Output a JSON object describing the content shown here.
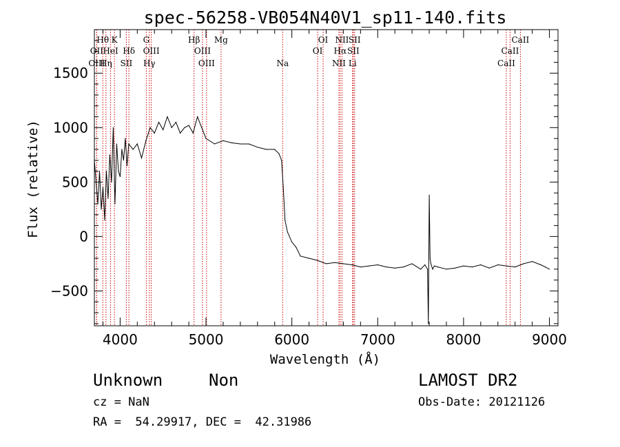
{
  "chart_data": {
    "type": "line",
    "title": "spec-56258-VB054N40V1_sp11-140.fits",
    "xlabel": "Wavelength (Å)",
    "ylabel": "Flux (relative)",
    "xlim": [
      3700,
      9100
    ],
    "ylim": [
      -820,
      1900
    ],
    "xticks": [
      4000,
      5000,
      6000,
      7000,
      8000,
      9000
    ],
    "xtick_labels": [
      "4000",
      "5000",
      "6000",
      "7000",
      "8000",
      "9000"
    ],
    "yticks": [
      -500,
      0,
      500,
      1000,
      1500
    ],
    "ytick_labels": [
      "−500",
      "0",
      "500",
      "1000",
      "1500"
    ],
    "series": [
      {
        "x": [
          3700,
          3720,
          3740,
          3760,
          3780,
          3800,
          3820,
          3840,
          3860,
          3880,
          3900,
          3920,
          3940,
          3960,
          3980,
          4000,
          4020,
          4040,
          4060,
          4080,
          4100,
          4150,
          4200,
          4250,
          4300,
          4350,
          4400,
          4450,
          4500,
          4550,
          4600,
          4650,
          4700,
          4750,
          4800,
          4850,
          4900,
          4950,
          5000,
          5100,
          5200,
          5300,
          5400,
          5500,
          5600,
          5700,
          5800,
          5850,
          5880,
          5900,
          5920,
          5950,
          6000,
          6050,
          6100,
          6200,
          6300,
          6400,
          6500,
          6600,
          6700,
          6800,
          6900,
          7000,
          7100,
          7200,
          7300,
          7400,
          7500,
          7550,
          7580,
          7590,
          7600,
          7610,
          7620,
          7640,
          7660,
          7700,
          7800,
          7900,
          8000,
          8100,
          8200,
          8300,
          8400,
          8500,
          8600,
          8700,
          8800,
          8900,
          8950,
          9000
        ],
        "y": [
          700,
          500,
          300,
          600,
          250,
          450,
          150,
          600,
          350,
          750,
          500,
          1000,
          300,
          850,
          600,
          550,
          800,
          700,
          900,
          650,
          850,
          800,
          850,
          720,
          880,
          1000,
          950,
          1050,
          980,
          1100,
          1000,
          1050,
          950,
          1000,
          1020,
          950,
          1100,
          1000,
          900,
          850,
          880,
          860,
          850,
          850,
          820,
          800,
          800,
          760,
          700,
          450,
          150,
          40,
          -50,
          -100,
          -180,
          -200,
          -220,
          -250,
          -240,
          -250,
          -260,
          -280,
          -270,
          -260,
          -280,
          -290,
          -280,
          -250,
          -300,
          -260,
          -300,
          -800,
          380,
          -200,
          -250,
          -300,
          -270,
          -280,
          -300,
          -290,
          -270,
          -280,
          -260,
          -290,
          -260,
          -270,
          -280,
          -250,
          -230,
          -260,
          -280,
          -300
        ]
      }
    ],
    "spectral_lines": [
      {
        "label": "Hθ",
        "x": 3798,
        "row": 1
      },
      {
        "label": "K",
        "x": 3934,
        "row": 1
      },
      {
        "label": "G",
        "x": 4305,
        "row": 1
      },
      {
        "label": "Hβ",
        "x": 4861,
        "row": 1
      },
      {
        "label": "Mg",
        "x": 5175,
        "row": 1
      },
      {
        "label": "OI",
        "x": 6364,
        "row": 1
      },
      {
        "label": "NII",
        "x": 6584,
        "row": 1
      },
      {
        "label": "SII",
        "x": 6731,
        "row": 1
      },
      {
        "label": "CaII",
        "x": 8662,
        "row": 1
      },
      {
        "label": "OII",
        "x": 3727,
        "row": 2
      },
      {
        "label": "HeI",
        "x": 3889,
        "row": 2
      },
      {
        "label": "Hδ",
        "x": 4102,
        "row": 2
      },
      {
        "label": "OIII",
        "x": 4363,
        "row": 2
      },
      {
        "label": "OIII",
        "x": 4959,
        "row": 2
      },
      {
        "label": "OI",
        "x": 6300,
        "row": 2
      },
      {
        "label": "Hα",
        "x": 6563,
        "row": 2
      },
      {
        "label": "SII",
        "x": 6716,
        "row": 2
      },
      {
        "label": "CaII",
        "x": 8542,
        "row": 2
      },
      {
        "label": "OIII",
        "x": 3727,
        "row": 3
      },
      {
        "label": "Hη",
        "x": 3835,
        "row": 3
      },
      {
        "label": "SII",
        "x": 4072,
        "row": 3
      },
      {
        "label": "Hγ",
        "x": 4340,
        "row": 3
      },
      {
        "label": "OIII",
        "x": 5007,
        "row": 3
      },
      {
        "label": "Na",
        "x": 5893,
        "row": 3
      },
      {
        "label": "NII",
        "x": 6548,
        "row": 3
      },
      {
        "label": "Li",
        "x": 6707,
        "row": 3
      },
      {
        "label": "CaII",
        "x": 8498,
        "row": 3
      }
    ],
    "line_marker_color": "#cc0000"
  },
  "info": {
    "class_label": "Unknown",
    "subclass_label": "Non",
    "cz": "cz = NaN",
    "coords": "RA =  54.29917, DEC =  42.31986",
    "survey": "LAMOST DR2",
    "obs_date": "Obs-Date: 20121126"
  }
}
